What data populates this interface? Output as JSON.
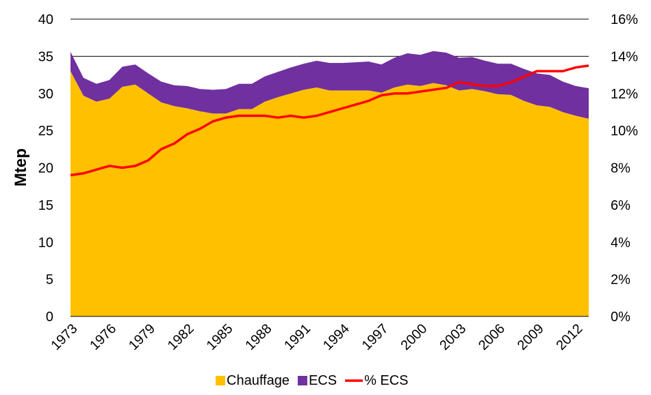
{
  "chart_data": {
    "type": "stacked-area-line",
    "y_label": "Mtep",
    "categories": [
      "1973",
      null,
      null,
      "1976",
      null,
      null,
      "1979",
      null,
      null,
      "1982",
      null,
      null,
      "1985",
      null,
      null,
      "1988",
      null,
      null,
      "1991",
      null,
      null,
      "1994",
      null,
      null,
      "1997",
      null,
      null,
      "2000",
      null,
      null,
      "2003",
      null,
      null,
      "2006",
      null,
      null,
      "2009",
      null,
      null,
      "2012",
      null
    ],
    "series": [
      {
        "name": "Chauffage",
        "color": "#ffc000",
        "type": "area",
        "values": [
          33,
          29.7,
          28.9,
          29.3,
          30.9,
          31.2,
          30,
          28.8,
          28.3,
          28,
          27.6,
          27.3,
          27.3,
          27.9,
          27.9,
          28.9,
          29.5,
          30,
          30.5,
          30.8,
          30.4,
          30.4,
          30.4,
          30.4,
          30.1,
          30.8,
          31.2,
          31,
          31.4,
          31.1,
          30.4,
          30.6,
          30.3,
          29.9,
          29.8,
          29,
          28.4,
          28.2,
          27.5,
          27,
          26.6
        ]
      },
      {
        "name": "ECS",
        "color": "#7030a0",
        "type": "area",
        "values": [
          2.6,
          2.4,
          2.4,
          2.5,
          2.7,
          2.7,
          2.7,
          2.8,
          2.8,
          3.0,
          3.0,
          3.2,
          3.3,
          3.4,
          3.4,
          3.4,
          3.4,
          3.5,
          3.5,
          3.6,
          3.7,
          3.7,
          3.8,
          3.9,
          3.8,
          4.0,
          4.2,
          4.2,
          4.3,
          4.4,
          4.4,
          4.3,
          4.1,
          4.1,
          4.2,
          4.3,
          4.3,
          4.3,
          4.1,
          4.0,
          4.1
        ]
      },
      {
        "name": "% ECS",
        "color": "#ff0000",
        "type": "line",
        "axis": "y2",
        "values": [
          7.6,
          7.7,
          7.9,
          8.1,
          8.0,
          8.1,
          8.4,
          9.0,
          9.3,
          9.8,
          10.1,
          10.5,
          10.7,
          10.8,
          10.8,
          10.8,
          10.7,
          10.8,
          10.7,
          10.8,
          11.0,
          11.2,
          11.4,
          11.6,
          11.9,
          12.0,
          12.0,
          12.1,
          12.2,
          12.3,
          12.6,
          12.5,
          12.4,
          12.4,
          12.6,
          12.9,
          13.2,
          13.2,
          13.2,
          13.4,
          13.5
        ]
      }
    ],
    "ylim": [
      0,
      40
    ],
    "yticks": [
      0,
      5,
      10,
      15,
      20,
      25,
      30,
      35,
      40
    ],
    "y2lim": [
      0,
      16
    ],
    "y2ticks": [
      {
        "value": 0,
        "label": "0%"
      },
      {
        "value": 2,
        "label": "2%"
      },
      {
        "value": 4,
        "label": "4%"
      },
      {
        "value": 6,
        "label": "6%"
      },
      {
        "value": 8,
        "label": "8%"
      },
      {
        "value": 10,
        "label": "10%"
      },
      {
        "value": 12,
        "label": "12%"
      },
      {
        "value": 14,
        "label": "14%"
      },
      {
        "value": 16,
        "label": "16%"
      }
    ],
    "grid": true,
    "legend": "bottom"
  }
}
